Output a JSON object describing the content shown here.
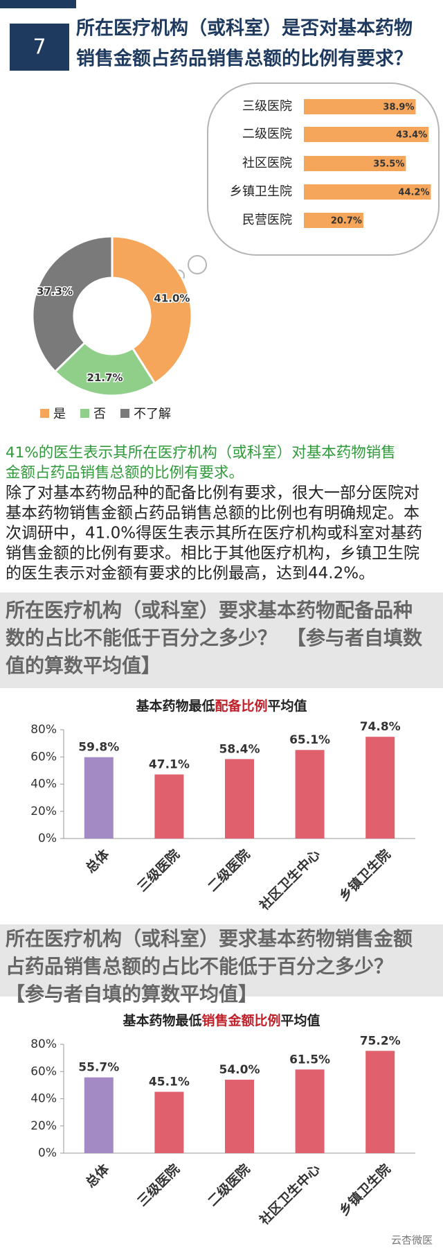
{
  "header": {
    "number": "7",
    "title": [
      "所在医疗机构（或科室）是否对基本药物",
      "销售金额占药品销售总额的比例有要求？"
    ]
  },
  "chart_data": [
    {
      "type": "hbar",
      "categories": [
        "三级医院",
        "二级医院",
        "社区医院",
        "乡镇卫生院",
        "民营医院"
      ],
      "values": [
        38.9,
        43.4,
        35.5,
        44.2,
        20.7
      ],
      "value_labels": [
        "38.9%",
        "43.4%",
        "35.5%",
        "44.2%",
        "20.7%"
      ],
      "color": "#f5a65b",
      "xlim": [
        0,
        46
      ]
    },
    {
      "type": "pie",
      "categories": [
        "是",
        "否",
        "不了解"
      ],
      "values": [
        41.0,
        21.7,
        37.3
      ],
      "value_labels": [
        "41.0%",
        "21.7%",
        "37.3%"
      ],
      "colors": [
        "#f5a65b",
        "#8fcf8a",
        "#7a7a7a"
      ]
    },
    {
      "type": "bar",
      "title": [
        "基本药物最低",
        "配备比例",
        "平均值"
      ],
      "title_colors": [
        "#222222",
        "#c0202a",
        "#222222"
      ],
      "categories": [
        "总体",
        "三级医院",
        "二级医院",
        "社区卫生中心",
        "乡镇卫生院"
      ],
      "values": [
        59.8,
        47.1,
        58.4,
        65.1,
        74.8
      ],
      "value_labels": [
        "59.8%",
        "47.1%",
        "58.4%",
        "65.1%",
        "74.8%"
      ],
      "colors": [
        "#a48ac4",
        "#e0606e",
        "#e0606e",
        "#e0606e",
        "#e0606e"
      ],
      "ylim": [
        0,
        80
      ],
      "yticks": [
        {
          "value": 0,
          "label": "0%"
        },
        {
          "value": 20,
          "label": "20%"
        },
        {
          "value": 40,
          "label": "40%"
        },
        {
          "value": 60,
          "label": "60%"
        },
        {
          "value": 80,
          "label": "80%"
        }
      ]
    },
    {
      "type": "bar",
      "title": [
        "基本药物最低",
        "销售金额比例",
        "平均值"
      ],
      "title_colors": [
        "#222222",
        "#c0202a",
        "#222222"
      ],
      "categories": [
        "总体",
        "三级医院",
        "二级医院",
        "社区卫生中心",
        "乡镇卫生院"
      ],
      "values": [
        55.7,
        45.1,
        54.0,
        61.5,
        75.2
      ],
      "value_labels": [
        "55.7%",
        "45.1%",
        "54.0%",
        "61.5%",
        "75.2%"
      ],
      "colors": [
        "#a48ac4",
        "#e0606e",
        "#e0606e",
        "#e0606e",
        "#e0606e"
      ],
      "ylim": [
        0,
        80
      ],
      "yticks": [
        {
          "value": 0,
          "label": "0%"
        },
        {
          "value": 20,
          "label": "20%"
        },
        {
          "value": 40,
          "label": "40%"
        },
        {
          "value": 60,
          "label": "60%"
        },
        {
          "value": 80,
          "label": "80%"
        }
      ]
    }
  ],
  "highlight": [
    "41%的医生表示其所在医疗机构（或科室）对基本药物销售",
    "金额占药品销售总额的比例有要求。"
  ],
  "paragraph": [
    "除了对基本药物品种的配备比例有要求，很大一部分医院对",
    "基本药物销售金额占药品销售总额的比例也有明确规定。本",
    "次调研中，41.0%得医生表示其所在医疗机构或科室对基药",
    "销售金额的比例有要求。相比于其他医疗机构，乡镇卫生院",
    "的医生表示对金额有要求的比例最高，达到44.2%。"
  ],
  "section2": [
    "所在医疗机构（或科室）要求基本药物配备品种",
    "数的占比不能低于百分之多少？　【参与者自填数",
    "值的算数平均值】"
  ],
  "section3": [
    "所在医疗机构（或科室）要求基本药物销售金额",
    "占药品销售总额的占比不能低于百分之多少？",
    "【参与者自填的算数平均值】"
  ],
  "watermark": "云杏微医"
}
